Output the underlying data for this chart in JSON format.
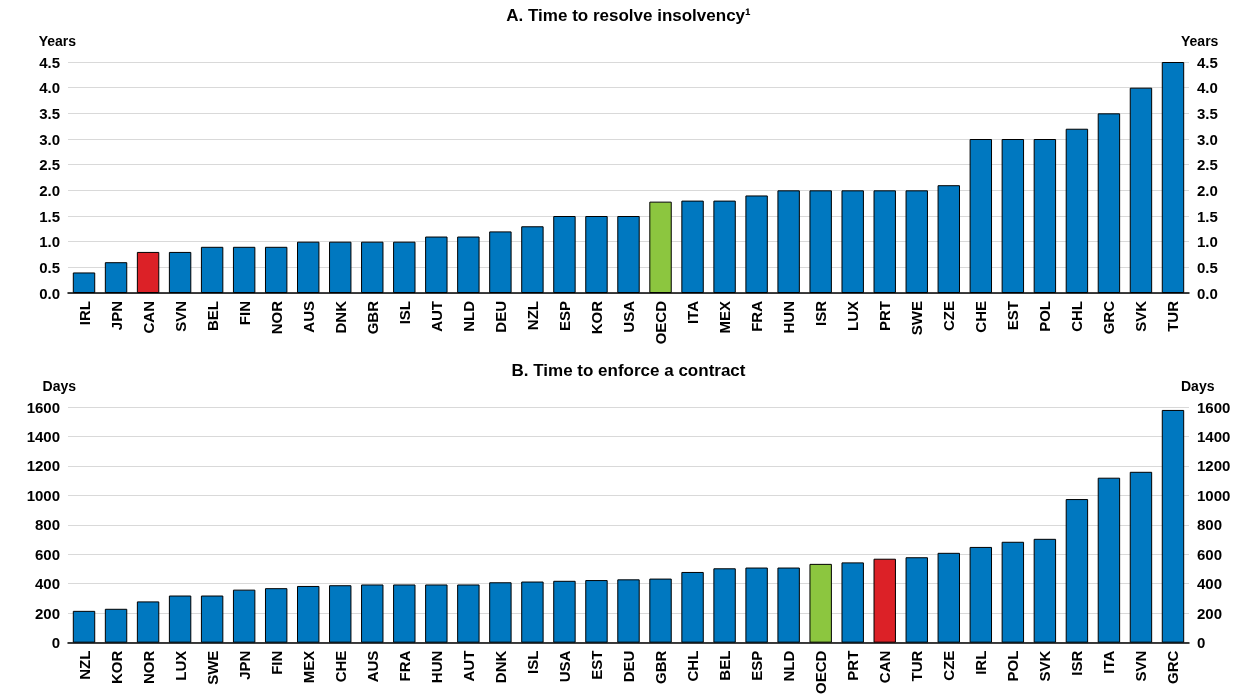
{
  "chart_data": [
    {
      "type": "bar",
      "title": "A. Time to resolve insolvency¹",
      "ylabel": "Years",
      "y2label": "Years",
      "categories": [
        "IRL",
        "JPN",
        "CAN",
        "SVN",
        "BEL",
        "FIN",
        "NOR",
        "AUS",
        "DNK",
        "GBR",
        "ISL",
        "AUT",
        "NLD",
        "DEU",
        "NZL",
        "ESP",
        "KOR",
        "USA",
        "OECD",
        "ITA",
        "MEX",
        "FRA",
        "HUN",
        "ISR",
        "LUX",
        "PRT",
        "SWE",
        "CZE",
        "CHE",
        "EST",
        "POL",
        "CHL",
        "GRC",
        "SVK",
        "TUR"
      ],
      "values": [
        0.4,
        0.6,
        0.8,
        0.8,
        0.9,
        0.9,
        0.9,
        1,
        1,
        1,
        1,
        1.1,
        1.1,
        1.2,
        1.3,
        1.5,
        1.5,
        1.5,
        1.78,
        1.8,
        1.8,
        1.9,
        2,
        2,
        2,
        2,
        2,
        2.1,
        3,
        3,
        3,
        3.2,
        3.5,
        4,
        4.5
      ],
      "colors": [
        "#0078c0",
        "#0078c0",
        "#dc2127",
        "#0078c0",
        "#0078c0",
        "#0078c0",
        "#0078c0",
        "#0078c0",
        "#0078c0",
        "#0078c0",
        "#0078c0",
        "#0078c0",
        "#0078c0",
        "#0078c0",
        "#0078c0",
        "#0078c0",
        "#0078c0",
        "#0078c0",
        "#8cc63f",
        "#0078c0",
        "#0078c0",
        "#0078c0",
        "#0078c0",
        "#0078c0",
        "#0078c0",
        "#0078c0",
        "#0078c0",
        "#0078c0",
        "#0078c0",
        "#0078c0",
        "#0078c0",
        "#0078c0",
        "#0078c0",
        "#0078c0",
        "#0078c0"
      ],
      "ylim": [
        0,
        4.5
      ],
      "yticks": [
        {
          "value": 0,
          "label": "0.0"
        },
        {
          "value": 0.5,
          "label": "0.5"
        },
        {
          "value": 1,
          "label": "1.0"
        },
        {
          "value": 1.5,
          "label": "1.5"
        },
        {
          "value": 2,
          "label": "2.0"
        },
        {
          "value": 2.5,
          "label": "2.5"
        },
        {
          "value": 3,
          "label": "3.0"
        },
        {
          "value": 3.5,
          "label": "3.5"
        },
        {
          "value": 4,
          "label": "4.0"
        },
        {
          "value": 4.5,
          "label": "4.5"
        }
      ],
      "y2lim": [
        0,
        4.5
      ],
      "y2ticks": [
        {
          "value": 0,
          "label": "0.0"
        },
        {
          "value": 0.5,
          "label": "0.5"
        },
        {
          "value": 1,
          "label": "1.0"
        },
        {
          "value": 1.5,
          "label": "1.5"
        },
        {
          "value": 2,
          "label": "2.0"
        },
        {
          "value": 2.5,
          "label": "2.5"
        },
        {
          "value": 3,
          "label": "3.0"
        },
        {
          "value": 3.5,
          "label": "3.5"
        },
        {
          "value": 4,
          "label": "4.0"
        },
        {
          "value": 4.5,
          "label": "4.5"
        }
      ],
      "grid": "y"
    },
    {
      "type": "bar",
      "title": "B. Time to enforce a contract",
      "ylabel": "Days",
      "y2label": "Days",
      "categories": [
        "NZL",
        "KOR",
        "NOR",
        "LUX",
        "SWE",
        "JPN",
        "FIN",
        "MEX",
        "CHE",
        "AUS",
        "FRA",
        "HUN",
        "AUT",
        "DNK",
        "ISL",
        "USA",
        "EST",
        "DEU",
        "GBR",
        "CHL",
        "BEL",
        "ESP",
        "NLD",
        "OECD",
        "PRT",
        "CAN",
        "TUR",
        "CZE",
        "IRL",
        "POL",
        "SVK",
        "ISR",
        "ITA",
        "SVN",
        "GRC"
      ],
      "values": [
        216,
        230,
        280,
        320,
        320,
        360,
        370,
        385,
        390,
        395,
        395,
        395,
        395,
        410,
        415,
        420,
        425,
        430,
        435,
        480,
        505,
        510,
        510,
        535,
        545,
        570,
        580,
        610,
        650,
        685,
        705,
        975,
        1120,
        1160,
        1580
      ],
      "colors": [
        "#0078c0",
        "#0078c0",
        "#0078c0",
        "#0078c0",
        "#0078c0",
        "#0078c0",
        "#0078c0",
        "#0078c0",
        "#0078c0",
        "#0078c0",
        "#0078c0",
        "#0078c0",
        "#0078c0",
        "#0078c0",
        "#0078c0",
        "#0078c0",
        "#0078c0",
        "#0078c0",
        "#0078c0",
        "#0078c0",
        "#0078c0",
        "#0078c0",
        "#0078c0",
        "#8cc63f",
        "#0078c0",
        "#dc2127",
        "#0078c0",
        "#0078c0",
        "#0078c0",
        "#0078c0",
        "#0078c0",
        "#0078c0",
        "#0078c0",
        "#0078c0",
        "#0078c0"
      ],
      "ylim": [
        0,
        1600
      ],
      "yticks": [
        0,
        200,
        400,
        600,
        800,
        1000,
        1200,
        1400,
        1600
      ],
      "y2lim": [
        0,
        1600
      ],
      "y2ticks": [
        0,
        200,
        400,
        600,
        800,
        1000,
        1200,
        1400,
        1600
      ],
      "grid": "y"
    }
  ]
}
